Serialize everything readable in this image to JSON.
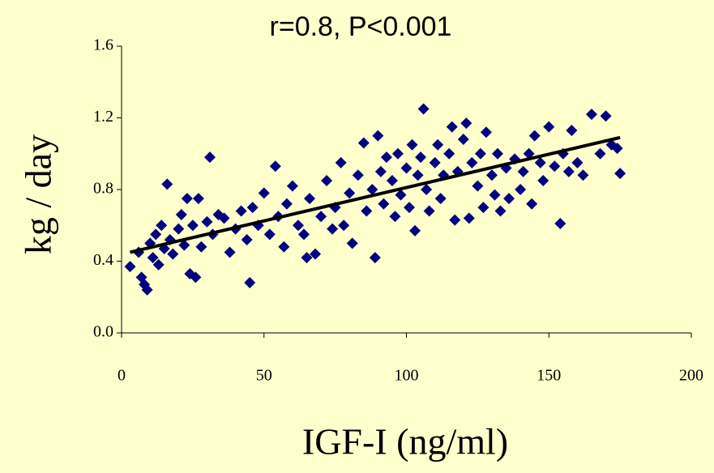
{
  "chart_data": {
    "type": "scatter",
    "title": "r=0.8, P<0.001",
    "x_label": "IGF-I (ng/ml)",
    "y_label": "kg / day",
    "xlim": [
      0,
      200
    ],
    "xticks": [
      0,
      50,
      100,
      150,
      200
    ],
    "ylim": [
      0,
      1.6
    ],
    "yticks": [
      {
        "value": 0,
        "label": "0.0"
      },
      0.4,
      0.8,
      1.2,
      1.6
    ],
    "series": [
      {
        "color": "#000080",
        "x": [
          3,
          6,
          7,
          8,
          9,
          10,
          11,
          12,
          13,
          14,
          15,
          16,
          17,
          18,
          20,
          21,
          22,
          23,
          24,
          25,
          26,
          27,
          28,
          30,
          31,
          32,
          34,
          36,
          38,
          40,
          42,
          44,
          45,
          46,
          48,
          50,
          52,
          54,
          55,
          57,
          58,
          60,
          62,
          64,
          65,
          66,
          68,
          70,
          72,
          74,
          75,
          77,
          78,
          80,
          81,
          83,
          85,
          86,
          88,
          89,
          90,
          91,
          92,
          93,
          95,
          96,
          97,
          98,
          100,
          101,
          102,
          103,
          104,
          105,
          106,
          107,
          108,
          110,
          111,
          112,
          113,
          115,
          116,
          117,
          118,
          120,
          121,
          122,
          123,
          125,
          126,
          127,
          128,
          130,
          131,
          132,
          133,
          135,
          136,
          138,
          140,
          141,
          143,
          144,
          145,
          147,
          148,
          150,
          152,
          154,
          155,
          157,
          158,
          160,
          162,
          165,
          168,
          170,
          172,
          174,
          175
        ],
        "values": [
          0.37,
          0.45,
          0.31,
          0.27,
          0.24,
          0.5,
          0.42,
          0.55,
          0.38,
          0.6,
          0.47,
          0.83,
          0.52,
          0.44,
          0.58,
          0.66,
          0.49,
          0.75,
          0.33,
          0.6,
          0.31,
          0.75,
          0.48,
          0.62,
          0.98,
          0.55,
          0.66,
          0.64,
          0.45,
          0.58,
          0.68,
          0.52,
          0.28,
          0.7,
          0.6,
          0.78,
          0.55,
          0.93,
          0.65,
          0.48,
          0.72,
          0.82,
          0.6,
          0.55,
          0.42,
          0.75,
          0.44,
          0.65,
          0.85,
          0.58,
          0.7,
          0.95,
          0.6,
          0.78,
          0.5,
          0.88,
          1.06,
          0.68,
          0.8,
          0.42,
          1.1,
          0.9,
          0.72,
          0.98,
          0.85,
          0.65,
          1.0,
          0.77,
          0.92,
          0.7,
          1.05,
          0.57,
          0.88,
          0.98,
          1.25,
          0.8,
          0.68,
          0.95,
          1.05,
          0.75,
          0.88,
          1.0,
          1.15,
          0.63,
          0.9,
          1.08,
          1.17,
          0.64,
          0.95,
          0.82,
          1.0,
          0.7,
          1.12,
          0.88,
          0.77,
          1.0,
          0.68,
          0.92,
          0.75,
          0.97,
          0.8,
          0.9,
          1.0,
          0.72,
          1.1,
          0.95,
          0.85,
          1.15,
          0.93,
          0.61,
          1.0,
          0.9,
          1.13,
          0.95,
          0.88,
          1.22,
          1.0,
          1.21,
          1.05,
          1.03,
          0.89
        ]
      }
    ],
    "trendline": {
      "color": "#000000",
      "x": [
        3,
        175
      ],
      "values": [
        0.45,
        1.09
      ]
    }
  }
}
